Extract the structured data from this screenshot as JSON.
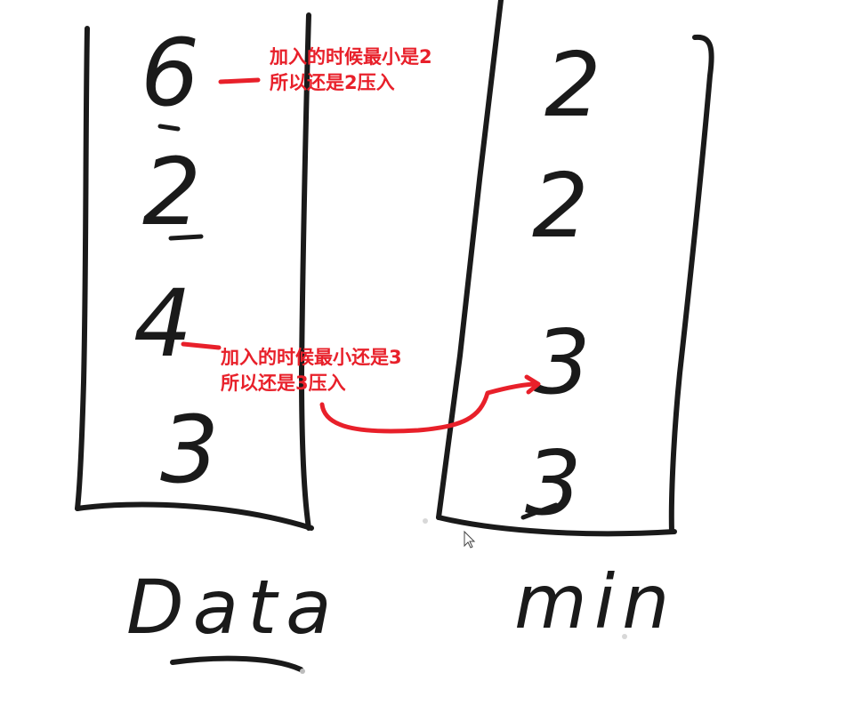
{
  "stacks": {
    "data": {
      "label": "Data",
      "items": [
        "6",
        "2",
        "4",
        "3"
      ]
    },
    "min": {
      "label": "min",
      "items": [
        "2",
        "2",
        "3",
        "3"
      ]
    }
  },
  "annotations": [
    {
      "line1": "加入的时候最小是2",
      "line2": "所以还是2压入"
    },
    {
      "line1": "加入的时候最小还是3",
      "line2": "所以还是3压入"
    }
  ],
  "colors": {
    "ink": "#1a1a1a",
    "annotation": "#e8202a"
  },
  "icons": {
    "cursor": "mouse-pointer-icon"
  }
}
